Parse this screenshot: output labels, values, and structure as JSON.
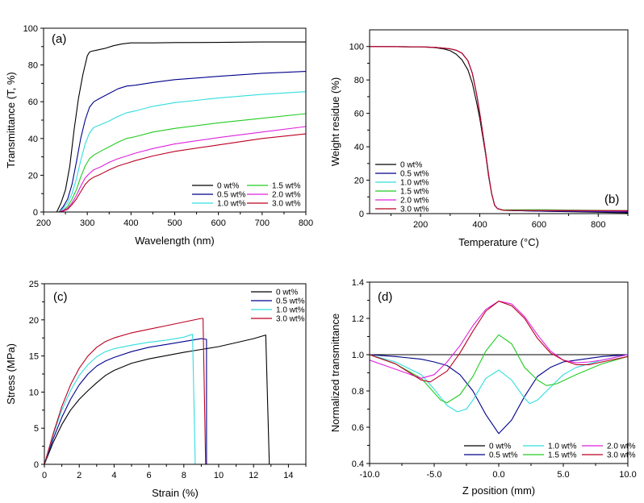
{
  "colors": {
    "0 wt%": "#000000",
    "0.5 wt%": "#00008b",
    "1.0 wt%": "#33dddd",
    "1.5 wt%": "#22cc22",
    "2.0 wt%": "#dd22dd",
    "3.0 wt%": "#bb0022"
  },
  "chart_data": [
    {
      "id": "a",
      "type": "line",
      "panel_label": "(a)",
      "title": "",
      "xlabel": "Wavelength (nm)",
      "ylabel": "Transmittance (T, %)",
      "xlim": [
        200,
        800
      ],
      "ylim": [
        0,
        100
      ],
      "xticks": [
        200,
        300,
        400,
        500,
        600,
        700,
        800
      ],
      "yticks": [
        0,
        20,
        40,
        60,
        80,
        100
      ],
      "legend": "bottom-right",
      "legend_columns": 2,
      "series": [
        {
          "name": "0 wt%",
          "x": [
            200,
            230,
            240,
            250,
            260,
            270,
            280,
            290,
            300,
            305,
            310,
            320,
            340,
            360,
            380,
            400,
            450,
            500,
            600,
            700,
            800
          ],
          "y": [
            0,
            0,
            5,
            12,
            25,
            45,
            62,
            75,
            85,
            87,
            87.5,
            88,
            89,
            90.5,
            91.5,
            92,
            92,
            92.2,
            92.3,
            92.5,
            92.5
          ]
        },
        {
          "name": "0.5 wt%",
          "x": [
            200,
            235,
            245,
            255,
            265,
            275,
            285,
            295,
            305,
            315,
            330,
            350,
            370,
            390,
            410,
            450,
            500,
            600,
            700,
            800
          ],
          "y": [
            0,
            0,
            3,
            7,
            15,
            27,
            40,
            50,
            57,
            60,
            62,
            64.5,
            67,
            68.5,
            69,
            70.5,
            72,
            73.8,
            75.5,
            76.5
          ]
        },
        {
          "name": "1.0 wt%",
          "x": [
            200,
            235,
            245,
            255,
            265,
            275,
            285,
            295,
            305,
            315,
            330,
            350,
            370,
            390,
            410,
            450,
            500,
            600,
            700,
            800
          ],
          "y": [
            0,
            0,
            2,
            5,
            10,
            18,
            28,
            37,
            43,
            46,
            47.5,
            49.5,
            52,
            54,
            55,
            57.5,
            59.5,
            62,
            64,
            65.5
          ]
        },
        {
          "name": "1.5 wt%",
          "x": [
            200,
            235,
            245,
            255,
            265,
            275,
            285,
            295,
            305,
            315,
            330,
            350,
            370,
            390,
            410,
            450,
            500,
            600,
            700,
            800
          ],
          "y": [
            0,
            0,
            1,
            3,
            7,
            12,
            19,
            25,
            29,
            31,
            33,
            35.5,
            38,
            40,
            41,
            43.5,
            45.5,
            48.5,
            51,
            53.5
          ]
        },
        {
          "name": "2.0 wt%",
          "x": [
            200,
            235,
            245,
            255,
            265,
            275,
            285,
            295,
            305,
            315,
            330,
            350,
            370,
            390,
            410,
            450,
            500,
            600,
            700,
            800
          ],
          "y": [
            0,
            0,
            1,
            2,
            5,
            9,
            14,
            18.5,
            21,
            23,
            24.5,
            27,
            29,
            30.5,
            32,
            34.5,
            37,
            40.5,
            43.5,
            46.5
          ]
        },
        {
          "name": "3.0 wt%",
          "x": [
            200,
            235,
            245,
            255,
            265,
            275,
            285,
            295,
            305,
            315,
            330,
            350,
            370,
            390,
            410,
            450,
            500,
            600,
            700,
            800
          ],
          "y": [
            0,
            0,
            0.5,
            1.5,
            4,
            7,
            11,
            15,
            17.5,
            19,
            20.5,
            23,
            25,
            26.5,
            28,
            30.5,
            33,
            36.5,
            40,
            42.5
          ]
        }
      ]
    },
    {
      "id": "b",
      "type": "line",
      "panel_label": "(b)",
      "title": "",
      "xlabel": "Temperature (°C)",
      "ylabel": "Weight residue (%)",
      "xlim": [
        28,
        900
      ],
      "ylim": [
        0,
        110
      ],
      "xticks": [
        200,
        400,
        600,
        800
      ],
      "yticks": [
        0,
        20,
        40,
        60,
        80,
        100
      ],
      "legend": "bottom-left",
      "legend_columns": 1,
      "series": [
        {
          "name": "0 wt%",
          "x": [
            28,
            200,
            250,
            280,
            300,
            320,
            340,
            360,
            375,
            390,
            400,
            410,
            420,
            430,
            440,
            450,
            460,
            480,
            600,
            900
          ],
          "y": [
            100,
            99.8,
            99.3,
            98.5,
            97.5,
            95.5,
            92,
            86,
            78,
            66,
            57,
            46,
            35,
            22,
            12,
            5,
            3,
            2,
            1.5,
            0.5
          ]
        },
        {
          "name": "0.5 wt%",
          "x": [
            28,
            200,
            250,
            280,
            300,
            320,
            340,
            360,
            375,
            390,
            400,
            410,
            420,
            430,
            440,
            450,
            460,
            480,
            600,
            900
          ],
          "y": [
            100,
            99.8,
            99.5,
            99,
            98.6,
            97.8,
            96,
            91.5,
            84,
            71,
            60,
            48,
            36,
            23,
            12,
            5,
            3,
            2,
            1.5,
            1
          ]
        },
        {
          "name": "1.0 wt%",
          "x": [
            28,
            200,
            250,
            280,
            300,
            320,
            340,
            360,
            375,
            390,
            400,
            410,
            420,
            430,
            440,
            450,
            460,
            480,
            600,
            900
          ],
          "y": [
            100,
            99.8,
            99.5,
            99,
            98.6,
            97.8,
            96,
            91.5,
            84,
            71,
            60,
            48,
            36,
            23,
            12,
            5,
            3,
            2,
            1.8,
            1.5
          ]
        },
        {
          "name": "1.5 wt%",
          "x": [
            28,
            200,
            250,
            280,
            300,
            320,
            340,
            360,
            375,
            390,
            400,
            410,
            420,
            430,
            440,
            450,
            460,
            480,
            600,
            900
          ],
          "y": [
            100,
            99.8,
            99.5,
            99,
            98.6,
            97.8,
            96,
            91.5,
            84,
            71,
            60,
            48,
            36,
            23,
            12,
            5,
            3,
            2.2,
            2.3,
            1.8
          ]
        },
        {
          "name": "2.0 wt%",
          "x": [
            28,
            200,
            250,
            280,
            300,
            320,
            340,
            360,
            375,
            390,
            400,
            410,
            420,
            430,
            440,
            450,
            460,
            480,
            600,
            900
          ],
          "y": [
            100,
            99.8,
            99.5,
            99,
            98.6,
            97.8,
            96,
            91.5,
            84,
            71,
            60,
            48,
            36,
            23,
            12,
            5,
            3,
            2,
            1.8,
            1.5
          ]
        },
        {
          "name": "3.0 wt%",
          "x": [
            28,
            200,
            250,
            280,
            300,
            320,
            340,
            360,
            375,
            390,
            400,
            410,
            420,
            430,
            440,
            450,
            460,
            480,
            600,
            900
          ],
          "y": [
            100,
            99.8,
            99.5,
            99,
            98.6,
            97.8,
            96,
            91.5,
            84,
            71,
            60,
            48,
            36,
            23,
            12,
            5,
            3,
            2,
            1.9,
            1.8
          ]
        }
      ]
    },
    {
      "id": "c",
      "type": "line",
      "panel_label": "(c)",
      "title": "",
      "xlabel": "Strain (%)",
      "ylabel": "Stress (MPa)",
      "xlim": [
        0,
        15
      ],
      "ylim": [
        0,
        25
      ],
      "xticks": [
        0,
        2,
        4,
        6,
        8,
        10,
        12,
        14
      ],
      "yticks": [
        0,
        5,
        10,
        15,
        20,
        25
      ],
      "legend": "top-right",
      "legend_columns": 1,
      "series": [
        {
          "name": "0 wt%",
          "x": [
            0,
            0.5,
            1,
            1.5,
            2,
            2.5,
            3,
            3.5,
            4,
            5,
            6,
            8,
            10,
            12,
            12.7,
            12.9,
            12.9
          ],
          "y": [
            0,
            3,
            5.5,
            7.5,
            9,
            10.2,
            11.3,
            12.3,
            13,
            14,
            14.6,
            15.5,
            16.3,
            17.4,
            17.9,
            0.5,
            0
          ]
        },
        {
          "name": "0.5 wt%",
          "x": [
            0,
            0.5,
            1,
            1.5,
            2,
            2.5,
            3,
            3.5,
            4,
            5,
            6,
            7,
            8,
            9,
            9.3,
            9.3
          ],
          "y": [
            0,
            3.5,
            6.5,
            9,
            11,
            12.5,
            13.6,
            14.3,
            14.8,
            15.6,
            16.2,
            16.6,
            17,
            17.4,
            17.3,
            0
          ]
        },
        {
          "name": "1.0 wt%",
          "x": [
            0,
            0.5,
            1,
            1.5,
            2,
            2.5,
            3,
            3.5,
            4,
            5,
            6,
            7,
            8,
            8.5,
            8.65,
            8.65
          ],
          "y": [
            0,
            4,
            7.5,
            10.2,
            12.3,
            13.8,
            14.9,
            15.6,
            16,
            16.5,
            16.9,
            17.2,
            17.6,
            18,
            0.5,
            0
          ]
        },
        {
          "name": "3.0 wt%",
          "x": [
            0,
            0.5,
            1,
            1.5,
            2,
            2.5,
            3,
            3.5,
            4,
            5,
            6,
            7,
            8,
            9,
            9.1,
            9.25
          ],
          "y": [
            0,
            4.2,
            8,
            11,
            13.3,
            15,
            16.2,
            17,
            17.5,
            18.2,
            18.7,
            19.2,
            19.7,
            20.2,
            20.2,
            0
          ]
        }
      ]
    },
    {
      "id": "d",
      "type": "line",
      "panel_label": "(d)",
      "title": "",
      "xlabel": "Z position (mm)",
      "ylabel": "Normalized transmittance",
      "xlim": [
        -10,
        10
      ],
      "ylim": [
        0.4,
        1.4
      ],
      "xticks": [
        -10,
        -5,
        0,
        5,
        10
      ],
      "yticks": [
        0.4,
        0.6,
        0.8,
        1.0,
        1.2,
        1.4
      ],
      "legend": "bottom-right",
      "legend_columns": 3,
      "series": [
        {
          "name": "0 wt%",
          "x": [
            -10,
            10
          ],
          "y": [
            1.0,
            1.0
          ]
        },
        {
          "name": "0.5 wt%",
          "x": [
            -10,
            -8,
            -6,
            -5,
            -4,
            -3,
            -2,
            -1,
            0,
            1,
            2,
            3,
            4,
            5,
            6,
            8,
            10
          ],
          "y": [
            1.0,
            0.99,
            0.975,
            0.96,
            0.94,
            0.89,
            0.8,
            0.67,
            0.565,
            0.64,
            0.77,
            0.88,
            0.93,
            0.96,
            0.97,
            0.99,
            1.0
          ]
        },
        {
          "name": "1.0 wt%",
          "x": [
            -10,
            -8,
            -6,
            -5,
            -4,
            -3.2,
            -2.5,
            -2,
            -1,
            0,
            1,
            2,
            2.4,
            3,
            4,
            5,
            6,
            8,
            10
          ],
          "y": [
            1.0,
            0.96,
            0.89,
            0.81,
            0.72,
            0.685,
            0.7,
            0.75,
            0.87,
            0.915,
            0.86,
            0.76,
            0.73,
            0.75,
            0.82,
            0.89,
            0.93,
            0.97,
            1.0
          ]
        },
        {
          "name": "1.5 wt%",
          "x": [
            -10,
            -8,
            -6,
            -5,
            -4.5,
            -4,
            -3,
            -2,
            -1,
            0,
            1,
            2,
            3,
            3.7,
            4.5,
            6,
            8,
            10
          ],
          "y": [
            1.0,
            0.95,
            0.87,
            0.79,
            0.75,
            0.735,
            0.78,
            0.88,
            1.02,
            1.11,
            1.06,
            0.93,
            0.86,
            0.83,
            0.84,
            0.89,
            0.95,
            0.99
          ]
        },
        {
          "name": "2.0 wt%",
          "x": [
            -10,
            -8,
            -6,
            -5,
            -4,
            -3,
            -2,
            -1,
            0,
            1,
            2,
            3,
            4,
            5,
            6,
            7,
            8,
            10
          ],
          "y": [
            0.97,
            0.92,
            0.87,
            0.89,
            0.96,
            1.05,
            1.16,
            1.25,
            1.295,
            1.28,
            1.21,
            1.11,
            1.02,
            0.97,
            0.955,
            0.96,
            0.97,
            1.0
          ]
        },
        {
          "name": "3.0 wt%",
          "x": [
            -10,
            -8,
            -6,
            -5.3,
            -4,
            -3,
            -2,
            -1,
            0,
            1,
            2,
            3,
            4,
            5,
            6,
            7,
            8,
            10
          ],
          "y": [
            1.0,
            0.95,
            0.86,
            0.85,
            0.91,
            1.01,
            1.13,
            1.24,
            1.295,
            1.27,
            1.2,
            1.09,
            1.01,
            0.97,
            0.945,
            0.945,
            0.96,
            0.99
          ]
        }
      ]
    }
  ]
}
